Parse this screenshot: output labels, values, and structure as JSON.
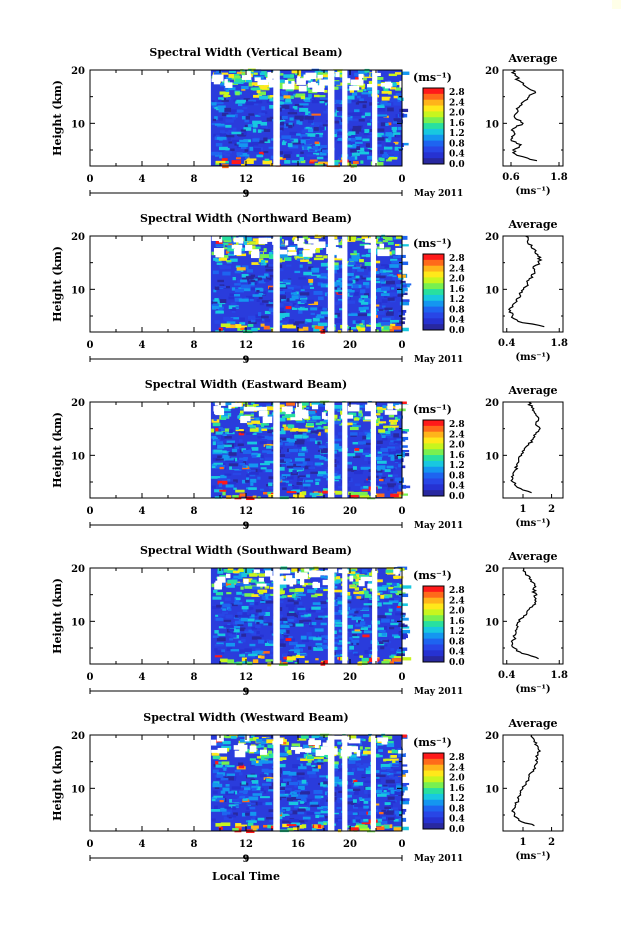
{
  "footer": {
    "xlabel": "Local Time"
  },
  "colorbar": {
    "unit": "(ms⁻¹)",
    "ticks": [
      "2.8",
      "2.4",
      "2.0",
      "1.6",
      "1.2",
      "0.8",
      "0.4",
      "0.0"
    ],
    "colors": [
      "#ff1a1a",
      "#ff6a1a",
      "#ffb41a",
      "#ffe81a",
      "#c8f51e",
      "#78f050",
      "#28e0a0",
      "#18c8e0",
      "#1496f0",
      "#1e64f0",
      "#2846e6",
      "#2632d2",
      "#2828a0"
    ]
  },
  "colors": {
    "base": "#2a3cdc",
    "gap": "#ffffff"
  },
  "chart_data": [
    {
      "type": "heatmap",
      "title": "Spectral Width (Vertical Beam)",
      "ylabel": "Height (km)",
      "xlim": [
        0,
        24
      ],
      "ylim": [
        2,
        20
      ],
      "x_ticks": [
        "0",
        "4",
        "8",
        "12",
        "16",
        "20",
        "0"
      ],
      "y_ticks": [
        "20",
        "10"
      ],
      "date_mark": "9",
      "date_label": "May 2011",
      "data_start_hour": 9.3,
      "data_gap_hours": [
        [
          14.1,
          14.6
        ],
        [
          18.3,
          18.8
        ],
        [
          19.4,
          19.8
        ],
        [
          21.7,
          22.1
        ]
      ],
      "average": {
        "title": "Average",
        "xlabel": "(ms⁻¹)",
        "xlim": [
          0.4,
          1.9
        ],
        "x_ticks": [
          "0.6",
          "1.8"
        ],
        "profile_heights": [
          3,
          4,
          5,
          6,
          7,
          8,
          9,
          10,
          11,
          12,
          13,
          14,
          15,
          16,
          17,
          18,
          19,
          20
        ],
        "profile_values": [
          1.25,
          0.75,
          0.65,
          0.85,
          0.6,
          0.7,
          0.65,
          0.9,
          0.7,
          0.75,
          0.8,
          0.9,
          1.05,
          1.2,
          0.95,
          0.8,
          0.7,
          0.65
        ]
      }
    },
    {
      "type": "heatmap",
      "title": "Spectral Width (Northward Beam)",
      "ylabel": "Height (km)",
      "xlim": [
        0,
        24
      ],
      "ylim": [
        2,
        20
      ],
      "x_ticks": [
        "0",
        "4",
        "8",
        "12",
        "16",
        "20",
        "0"
      ],
      "y_ticks": [
        "20",
        "10"
      ],
      "date_mark": "9",
      "date_label": "May 2011",
      "data_start_hour": 9.3,
      "data_gap_hours": [
        [
          14.1,
          14.6
        ],
        [
          18.3,
          18.8
        ],
        [
          19.4,
          19.8
        ],
        [
          21.6,
          22.0
        ]
      ],
      "average": {
        "title": "Average",
        "xlabel": "(ms⁻¹)",
        "xlim": [
          0.3,
          1.9
        ],
        "x_ticks": [
          "0.4",
          "1.8"
        ],
        "profile_heights": [
          3,
          4,
          5,
          6,
          7,
          8,
          9,
          10,
          11,
          12,
          13,
          14,
          15,
          16,
          17,
          18,
          19,
          20
        ],
        "profile_values": [
          1.4,
          0.7,
          0.55,
          0.5,
          0.55,
          0.65,
          0.75,
          0.85,
          0.95,
          1.0,
          1.15,
          1.1,
          1.25,
          1.3,
          1.15,
          1.05,
          0.95,
          0.9
        ]
      }
    },
    {
      "type": "heatmap",
      "title": "Spectral Width (Eastward Beam)",
      "ylabel": "Height (km)",
      "xlim": [
        0,
        24
      ],
      "ylim": [
        2,
        20
      ],
      "x_ticks": [
        "0",
        "4",
        "8",
        "12",
        "16",
        "20",
        "0"
      ],
      "y_ticks": [
        "20",
        "10"
      ],
      "date_mark": "9",
      "date_label": "May 2011",
      "data_start_hour": 9.3,
      "data_gap_hours": [
        [
          14.1,
          14.6
        ],
        [
          18.3,
          18.8
        ],
        [
          19.4,
          19.8
        ],
        [
          21.6,
          22.0
        ]
      ],
      "average": {
        "title": "Average",
        "xlabel": "(ms⁻¹)",
        "xlim": [
          0.3,
          2.4
        ],
        "x_ticks": [
          "1",
          "2"
        ],
        "profile_heights": [
          3,
          4,
          5,
          6,
          7,
          8,
          9,
          10,
          11,
          12,
          13,
          14,
          15,
          16,
          17,
          18,
          19,
          20
        ],
        "profile_values": [
          1.3,
          0.8,
          0.65,
          0.6,
          0.7,
          0.8,
          0.85,
          0.95,
          1.05,
          1.2,
          1.35,
          1.45,
          1.6,
          1.45,
          1.55,
          1.4,
          1.3,
          1.2
        ]
      }
    },
    {
      "type": "heatmap",
      "title": "Spectral Width (Southward Beam)",
      "ylabel": "Height (km)",
      "xlim": [
        0,
        24
      ],
      "ylim": [
        2,
        20
      ],
      "x_ticks": [
        "0",
        "4",
        "8",
        "12",
        "16",
        "20",
        "0"
      ],
      "y_ticks": [
        "20",
        "10"
      ],
      "date_mark": "9",
      "date_label": "May 2011",
      "data_start_hour": 9.3,
      "data_gap_hours": [
        [
          14.1,
          14.6
        ],
        [
          18.3,
          18.8
        ],
        [
          19.4,
          19.8
        ],
        [
          21.7,
          22.1
        ]
      ],
      "average": {
        "title": "Average",
        "xlabel": "(ms⁻¹)",
        "xlim": [
          0.3,
          1.9
        ],
        "x_ticks": [
          "0.4",
          "1.8"
        ],
        "profile_heights": [
          3,
          4,
          5,
          6,
          7,
          8,
          9,
          10,
          11,
          12,
          13,
          14,
          15,
          16,
          17,
          18,
          19,
          20
        ],
        "profile_values": [
          1.25,
          0.8,
          0.6,
          0.55,
          0.6,
          0.65,
          0.7,
          0.75,
          0.85,
          0.95,
          1.1,
          1.15,
          1.2,
          1.1,
          1.15,
          1.0,
          0.9,
          0.85
        ]
      }
    },
    {
      "type": "heatmap",
      "title": "Spectral Width (Westward Beam)",
      "ylabel": "Height (km)",
      "xlim": [
        0,
        24
      ],
      "ylim": [
        2,
        20
      ],
      "x_ticks": [
        "0",
        "4",
        "8",
        "12",
        "16",
        "20",
        "0"
      ],
      "y_ticks": [
        "20",
        "10"
      ],
      "date_mark": "9",
      "date_label": "May 2011",
      "data_start_hour": 9.3,
      "data_gap_hours": [
        [
          14.1,
          14.6
        ],
        [
          18.3,
          18.8
        ],
        [
          19.4,
          19.8
        ],
        [
          21.6,
          22.0
        ]
      ],
      "average": {
        "title": "Average",
        "xlabel": "(ms⁻¹)",
        "xlim": [
          0.3,
          2.4
        ],
        "x_ticks": [
          "1",
          "2"
        ],
        "profile_heights": [
          3,
          4,
          5,
          6,
          7,
          8,
          9,
          10,
          11,
          12,
          13,
          14,
          15,
          16,
          17,
          18,
          19,
          20
        ],
        "profile_values": [
          1.4,
          0.85,
          0.7,
          0.65,
          0.75,
          0.85,
          0.9,
          1.0,
          1.1,
          1.2,
          1.3,
          1.4,
          1.5,
          1.45,
          1.6,
          1.5,
          1.4,
          1.3
        ]
      }
    }
  ]
}
